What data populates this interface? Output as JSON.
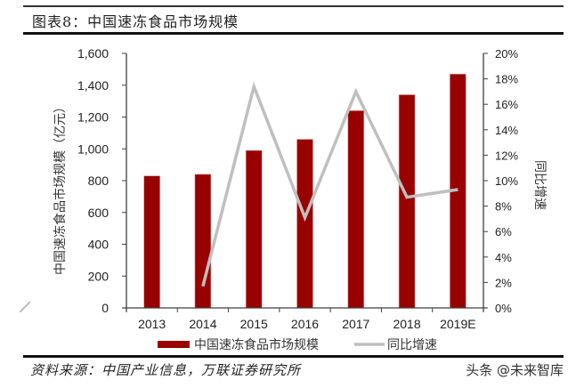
{
  "header": {
    "figure_title": "图表8：中国速冻食品市场规模"
  },
  "footer": {
    "source": "资料来源：中国产业信息，万联证券研究所",
    "watermark": "头条 @未来智库"
  },
  "colors": {
    "bar": "#990000",
    "line": "#BFBFBF",
    "axis": "#404040"
  },
  "chart_data": {
    "type": "bar+line",
    "title": "中国速冻食品市场规模",
    "categories": [
      "2013",
      "2014",
      "2015",
      "2016",
      "2017",
      "2018",
      "2019E"
    ],
    "series": [
      {
        "name": "中国速冻食品市场规模",
        "type": "bar",
        "axis": "left",
        "unit": "亿元",
        "values": [
          830,
          840,
          990,
          1060,
          1240,
          1340,
          1470
        ]
      },
      {
        "name": "同比增速",
        "type": "line",
        "axis": "right",
        "unit": "%",
        "values": [
          null,
          1.7,
          17.4,
          7.1,
          17.0,
          8.7,
          9.3
        ]
      }
    ],
    "ylabel": "中国速冻食品市场规模（亿元）",
    "y2label": "同比增速",
    "xlabel": "",
    "ylim": [
      0,
      1600
    ],
    "y2lim": [
      0,
      20
    ],
    "yticks": [
      "0",
      "200",
      "400",
      "600",
      "800",
      "1,000",
      "1,200",
      "1,400",
      "1,600"
    ],
    "y2ticks": [
      "0%",
      "2%",
      "4%",
      "6%",
      "8%",
      "10%",
      "12%",
      "14%",
      "16%",
      "18%",
      "20%"
    ],
    "legend": [
      "中国速冻食品市场规模",
      "同比增速"
    ],
    "legend_position": "bottom",
    "grid": false
  }
}
